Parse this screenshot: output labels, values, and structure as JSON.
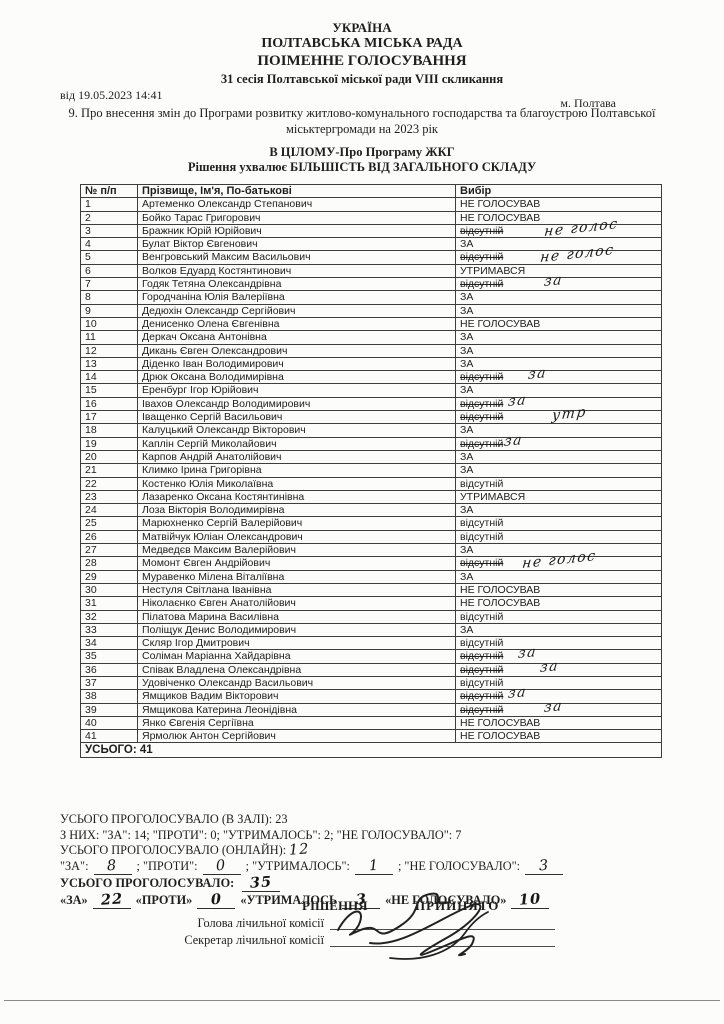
{
  "header": {
    "country": "УКРАЇНА",
    "council": "ПОЛТАВСЬКА МІСЬКА РАДА",
    "doc_type": "ПОІМЕННЕ ГОЛОСУВАННЯ",
    "session": "31 сесія Полтавської міської ради VIII скликання",
    "date_label": "від   19.05.2023 14:41",
    "city": "м. Полтава",
    "agenda": "9. Про внесення змін до Програми розвитку житлово-комунального господарства та благоустрою Полтавської міськтергромади на 2023 рік",
    "vote_subject": "В ЦІЛОМУ-Про Програму ЖКГ",
    "rule": "Рішення ухвалює БІЛЬШІСТЬ ВІД ЗАГАЛЬНОГО СКЛАДУ"
  },
  "table": {
    "headers": [
      "№ п/п",
      "Прізвище, Ім'я, По-батькові",
      "Вибір"
    ],
    "rows": [
      {
        "num": "1",
        "name": "Артеменко Олександр Степанович",
        "vote": "НЕ ГОЛОСУВАВ",
        "struck": false,
        "hw": ""
      },
      {
        "num": "2",
        "name": "Бойко Тарас Григорович",
        "vote": "НЕ ГОЛОСУВАВ",
        "struck": false,
        "hw": ""
      },
      {
        "num": "3",
        "name": "Бражник Юрій Юрійович",
        "vote": "відсутній",
        "struck": true,
        "hw": "не голос"
      },
      {
        "num": "4",
        "name": "Булат Віктор Євгенович",
        "vote": "ЗА",
        "struck": false,
        "hw": ""
      },
      {
        "num": "5",
        "name": "Венгровський Максим Васильович",
        "vote": "відсутній",
        "struck": true,
        "hw": "не голос"
      },
      {
        "num": "6",
        "name": "Волков Едуард Костянтинович",
        "vote": "УТРИМАВСЯ",
        "struck": false,
        "hw": ""
      },
      {
        "num": "7",
        "name": "Годяк Тетяна Олександрівна",
        "vote": "відсутній",
        "struck": true,
        "hw": "за"
      },
      {
        "num": "8",
        "name": "Городчаніна Юлія Валеріївна",
        "vote": "ЗА",
        "struck": false,
        "hw": ""
      },
      {
        "num": "9",
        "name": "Дедюхін Олександр Сергійович",
        "vote": "ЗА",
        "struck": false,
        "hw": ""
      },
      {
        "num": "10",
        "name": "Денисенко Олена Євгенівна",
        "vote": "НЕ ГОЛОСУВАВ",
        "struck": false,
        "hw": ""
      },
      {
        "num": "11",
        "name": "Деркач Оксана Антонівна",
        "vote": "ЗА",
        "struck": false,
        "hw": ""
      },
      {
        "num": "12",
        "name": "Дикань Євген Олександрович",
        "vote": "ЗА",
        "struck": false,
        "hw": ""
      },
      {
        "num": "13",
        "name": "Діденко Іван Володимирович",
        "vote": "ЗА",
        "struck": false,
        "hw": ""
      },
      {
        "num": "14",
        "name": "Дрюк Оксана Володимирівна",
        "vote": "відсутній",
        "struck": true,
        "hw": "за"
      },
      {
        "num": "15",
        "name": "Еренбург Ігор Юрійович",
        "vote": "ЗА",
        "struck": false,
        "hw": ""
      },
      {
        "num": "16",
        "name": "Івахов Олександр Володимирович",
        "vote": "відсутній",
        "struck": true,
        "hw": "за"
      },
      {
        "num": "17",
        "name": "Іващенко Сергій Васильович",
        "vote": "відсутній",
        "struck": true,
        "hw": "утр"
      },
      {
        "num": "18",
        "name": "Калуцький Олександр Вікторович",
        "vote": "ЗА",
        "struck": false,
        "hw": ""
      },
      {
        "num": "19",
        "name": "Каплін Сергій Миколайович",
        "vote": "відсутній",
        "struck": true,
        "hw": "за"
      },
      {
        "num": "20",
        "name": "Карпов Андрій Анатолійович",
        "vote": "ЗА",
        "struck": false,
        "hw": ""
      },
      {
        "num": "21",
        "name": "Климко Ірина Григорівна",
        "vote": "ЗА",
        "struck": false,
        "hw": ""
      },
      {
        "num": "22",
        "name": "Костенко Юлія Миколаївна",
        "vote": "відсутній",
        "struck": false,
        "hw": ""
      },
      {
        "num": "23",
        "name": "Лазаренко Оксана Костянтинівна",
        "vote": "УТРИМАВСЯ",
        "struck": false,
        "hw": ""
      },
      {
        "num": "24",
        "name": "Лоза Вікторія Володимирівна",
        "vote": "ЗА",
        "struck": false,
        "hw": ""
      },
      {
        "num": "25",
        "name": "Марюхненко Сергій Валерійович",
        "vote": "відсутній",
        "struck": false,
        "hw": ""
      },
      {
        "num": "26",
        "name": "Матвійчук Юліан Олександрович",
        "vote": "відсутній",
        "struck": false,
        "hw": ""
      },
      {
        "num": "27",
        "name": "Медведєв Максим Валерійович",
        "vote": "ЗА",
        "struck": false,
        "hw": ""
      },
      {
        "num": "28",
        "name": "Момонт Євген Андрійович",
        "vote": "відсутній",
        "struck": true,
        "hw": "не голос"
      },
      {
        "num": "29",
        "name": "Муравенко Мілена Віталіївна",
        "vote": "ЗА",
        "struck": false,
        "hw": ""
      },
      {
        "num": "30",
        "name": "Нестуля Світлана Іванівна",
        "vote": "НЕ ГОЛОСУВАВ",
        "struck": false,
        "hw": ""
      },
      {
        "num": "31",
        "name": "Ніколаєнко Євген Анатолійович",
        "vote": "НЕ ГОЛОСУВАВ",
        "struck": false,
        "hw": ""
      },
      {
        "num": "32",
        "name": "Пілатова Марина Василівна",
        "vote": "відсутній",
        "struck": false,
        "hw": ""
      },
      {
        "num": "33",
        "name": "Поліщук Денис Володимирович",
        "vote": "ЗА",
        "struck": false,
        "hw": ""
      },
      {
        "num": "34",
        "name": "Скляр Ігор Дмитрович",
        "vote": "відсутній",
        "struck": false,
        "hw": ""
      },
      {
        "num": "35",
        "name": "Соліман Маріанна Хайдарівна",
        "vote": "відсутній",
        "struck": true,
        "hw": "за"
      },
      {
        "num": "36",
        "name": "Співак Владлена Олександрівна",
        "vote": "відсутній",
        "struck": true,
        "hw": "за"
      },
      {
        "num": "37",
        "name": "Удовіченко Олександр Васильович",
        "vote": "відсутній",
        "struck": false,
        "hw": ""
      },
      {
        "num": "38",
        "name": "Ямщиков Вадим Вікторович",
        "vote": "відсутній",
        "struck": true,
        "hw": "за"
      },
      {
        "num": "39",
        "name": "Ямщикова Катерина Леонідівна",
        "vote": "відсутній",
        "struck": true,
        "hw": "за"
      },
      {
        "num": "40",
        "name": "Янко Євгенія Сергіївна",
        "vote": "НЕ ГОЛОСУВАВ",
        "struck": false,
        "hw": ""
      },
      {
        "num": "41",
        "name": "Ярмолюк Антон Сергійович",
        "vote": "НЕ ГОЛОСУВАВ",
        "struck": false,
        "hw": ""
      }
    ],
    "total_label": "УСЬОГО:  41"
  },
  "totals": {
    "line_hall": "УСЬОГО ПРОГОЛОСУВАЛО (В ЗАЛІ):  23",
    "line_hall_breakdown": "З НИХ: \"ЗА\":  14; \"ПРОТИ\":  0; \"УТРИМАЛОСЬ\":  2; \"НЕ ГОЛОСУВАЛО\":  7",
    "line_online_label": "УСЬОГО ПРОГОЛОСУВАЛО (ОНЛАЙН):",
    "line_online_value": "12",
    "online_breakdown": [
      {
        "label": "\"ЗА\":",
        "value": "8"
      },
      {
        "label": "; \"ПРОТИ\":",
        "value": "0"
      },
      {
        "label": "; \"УТРИМАЛОСЬ\":",
        "value": "1"
      },
      {
        "label": "; \"НЕ ГОЛОСУВАЛО\":",
        "value": "3"
      }
    ],
    "line_total_label": "УСЬОГО ПРОГОЛОСУВАЛО:",
    "line_total_value": "35",
    "total_breakdown": [
      {
        "label": "«ЗА»",
        "value": "22"
      },
      {
        "label": "«ПРОТИ»",
        "value": "0"
      },
      {
        "label": "«УТРИМАЛОСЬ",
        "value": "3"
      },
      {
        "label": "«НЕ ГОЛОСУВАЛО»",
        "value": "10"
      }
    ]
  },
  "decision": {
    "label": "РІШЕННЯ",
    "status": "ПРИЙНЯТО"
  },
  "signatures": {
    "head_label": "Голова лічильної комісії",
    "secretary_label": "Секретар лічильної комісії"
  }
}
